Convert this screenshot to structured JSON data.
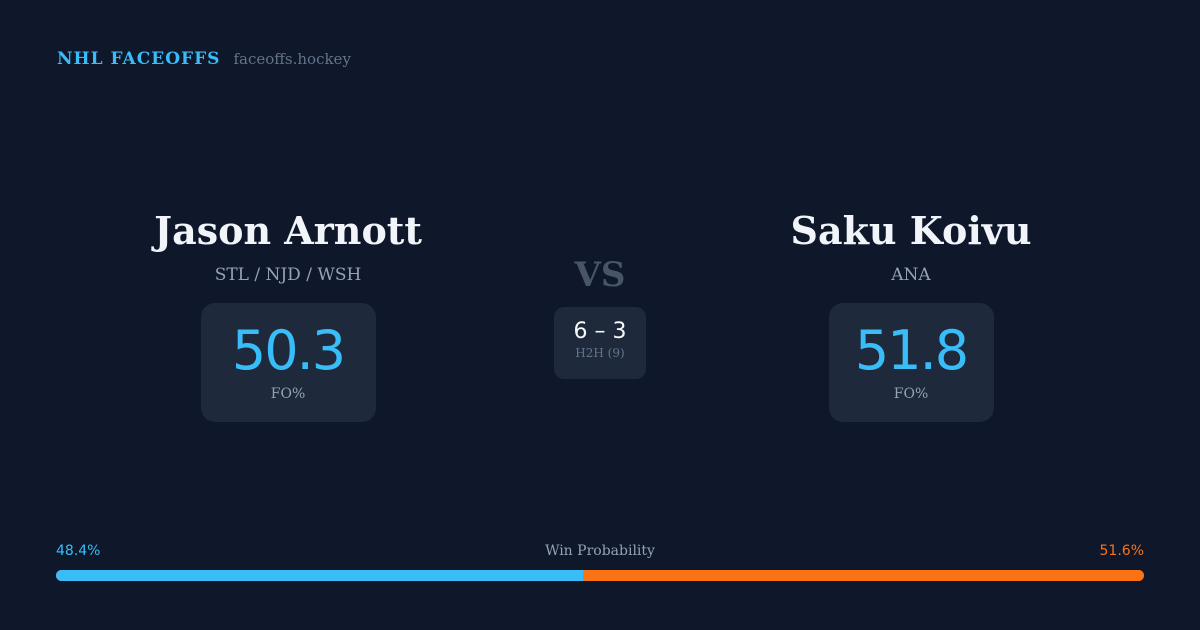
{
  "brand": {
    "title": "NHL FACEOFFS",
    "url": "faceoffs.hockey"
  },
  "player1": {
    "name": "Jason Arnott",
    "teams": "STL / NJD / WSH",
    "fo_pct": "50.3",
    "fo_label": "FO%"
  },
  "player2": {
    "name": "Saku Koivu",
    "teams": "ANA",
    "fo_pct": "51.8",
    "fo_label": "FO%"
  },
  "vs": "VS",
  "h2h": {
    "score": "6 – 3",
    "label": "H2H (9)"
  },
  "win_probability": {
    "label": "Win Probability",
    "player1": "48.4%",
    "player2": "51.6%",
    "player1_value": 48.4,
    "colors": {
      "player1": "#38bdf8",
      "player2": "#f97316"
    }
  }
}
